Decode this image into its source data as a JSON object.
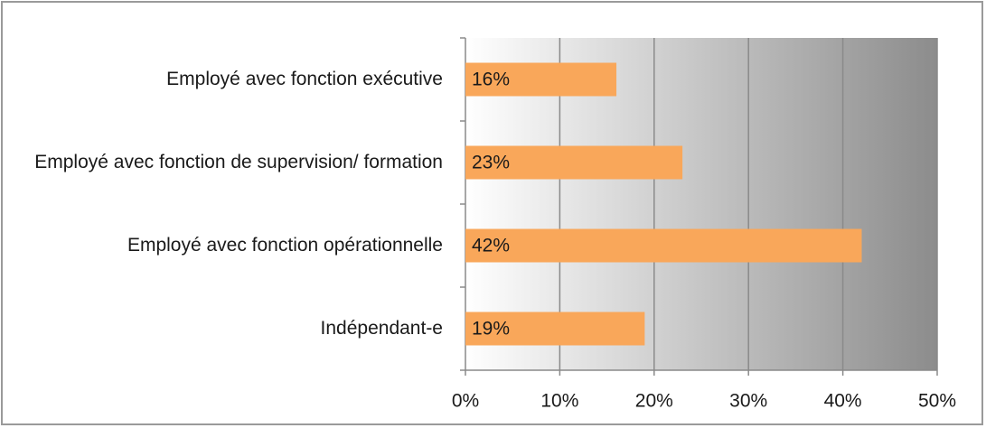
{
  "chart_data": {
    "type": "barh",
    "categories": [
      "Employé avec fonction exécutive",
      "Employé avec fonction de supervision/ formation",
      "Employé avec fonction opérationnelle",
      "Indépendant-e"
    ],
    "values": [
      16,
      23,
      42,
      19
    ],
    "value_labels": [
      "16%",
      "23%",
      "42%",
      "19%"
    ],
    "color": "#f9a75a",
    "xlim": [
      0,
      50
    ],
    "xticks": [
      {
        "value": 0,
        "label": "0%"
      },
      {
        "value": 10,
        "label": "10%"
      },
      {
        "value": 20,
        "label": "20%"
      },
      {
        "value": 30,
        "label": "30%"
      },
      {
        "value": 40,
        "label": "40%"
      },
      {
        "value": 50,
        "label": "50%"
      }
    ],
    "grid": true
  }
}
